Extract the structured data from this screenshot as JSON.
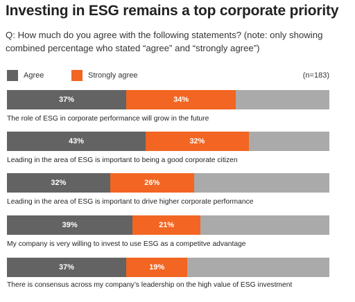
{
  "colors": {
    "agree": "#636363",
    "strongly_agree": "#f26522",
    "remainder": "#aaaaaa"
  },
  "chart_data": {
    "type": "bar",
    "orientation": "horizontal",
    "stacked": true,
    "title": "Investing in ESG remains a top corporate priority",
    "subtitle": "Q: How much do you agree with the following statements? (note: only showing combined percentage who stated “agree” and “strongly agree”)",
    "sample_note": "(n=183)",
    "xlim": [
      0,
      100
    ],
    "grid": false,
    "legend_position": "top-left",
    "legend": [
      "Agree",
      "Strongly agree"
    ],
    "categories": [
      "The role of ESG in corporate performance will grow in the future",
      "Leading in the area of ESG is important to being a good corporate citizen",
      "Leading in the area of ESG is important to drive higher corporate performance",
      "My company is very willing to invest to use ESG as a competitve advantage",
      "There is consensus across my company’s leadership on the high value of ESG investment"
    ],
    "series": [
      {
        "name": "Agree",
        "values": [
          37,
          43,
          32,
          39,
          37
        ],
        "labels": [
          "37%",
          "43%",
          "32%",
          "39%",
          "37%"
        ]
      },
      {
        "name": "Strongly agree",
        "values": [
          34,
          32,
          26,
          21,
          19
        ],
        "labels": [
          "34%",
          "32%",
          "26%",
          "21%",
          "19%"
        ]
      }
    ]
  }
}
